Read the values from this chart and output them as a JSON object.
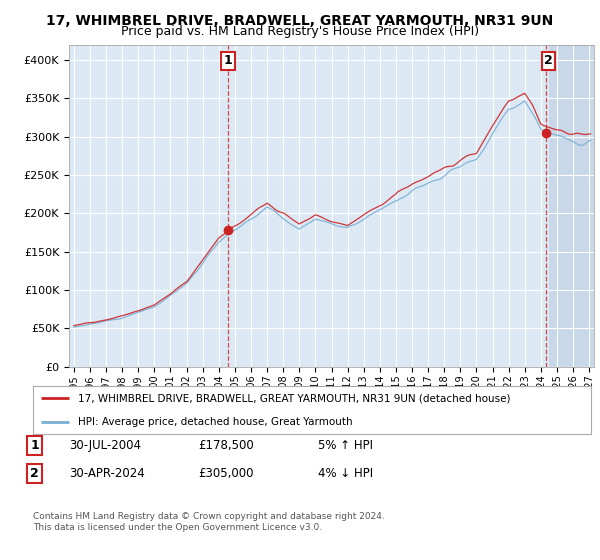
{
  "title": "17, WHIMBREL DRIVE, BRADWELL, GREAT YARMOUTH, NR31 9UN",
  "subtitle": "Price paid vs. HM Land Registry's House Price Index (HPI)",
  "ylim": [
    0,
    420000
  ],
  "yticks": [
    0,
    50000,
    100000,
    150000,
    200000,
    250000,
    300000,
    350000,
    400000
  ],
  "ytick_labels": [
    "£0",
    "£50K",
    "£100K",
    "£150K",
    "£200K",
    "£250K",
    "£300K",
    "£350K",
    "£400K"
  ],
  "bg_color": "#ffffff",
  "plot_bg_color": "#dce9f5",
  "grid_color": "#ffffff",
  "hpi_color": "#7aafd4",
  "price_color": "#cc2222",
  "annotation_color": "#cc2222",
  "sale1_date": 2004.57,
  "sale1_price": 178500,
  "sale2_date": 2024.33,
  "sale2_price": 305000,
  "legend_price_label": "17, WHIMBREL DRIVE, BRADWELL, GREAT YARMOUTH, NR31 9UN (detached house)",
  "legend_hpi_label": "HPI: Average price, detached house, Great Yarmouth",
  "annotation1_date": "30-JUL-2004",
  "annotation1_price": "£178,500",
  "annotation1_hpi": "5% ↑ HPI",
  "annotation2_date": "30-APR-2024",
  "annotation2_price": "£305,000",
  "annotation2_hpi": "4% ↓ HPI",
  "footer": "Contains HM Land Registry data © Crown copyright and database right 2024.\nThis data is licensed under the Open Government Licence v3.0.",
  "title_fontsize": 10,
  "subtitle_fontsize": 9
}
